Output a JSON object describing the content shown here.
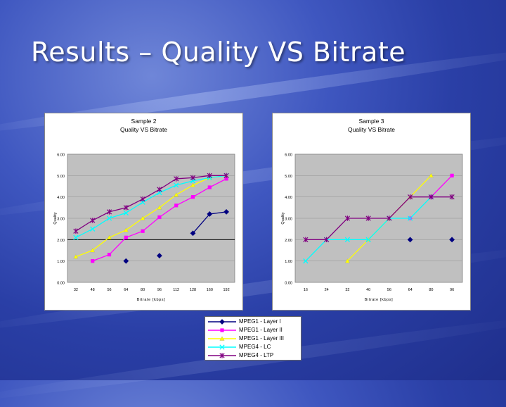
{
  "slide": {
    "title": "Results – Quality VS Bitrate"
  },
  "series_style": [
    {
      "name": "MPEG1 - Layer I",
      "color": "#000080",
      "marker": "diamond",
      "line": true
    },
    {
      "name": "MPEG1 - Layer II",
      "color": "#ff00ff",
      "marker": "square",
      "line": true
    },
    {
      "name": "MPEG1 - Layer III",
      "color": "#ffff00",
      "marker": "triangle",
      "line": true
    },
    {
      "name": "MPEG4 - LC",
      "color": "#00ffff",
      "marker": "x",
      "line": true
    },
    {
      "name": "MPEG4 - LTP",
      "color": "#800080",
      "marker": "star",
      "line": true
    }
  ],
  "chart_data": [
    {
      "type": "line",
      "title": [
        "Sample 2",
        "Quality VS Bitrate"
      ],
      "xlabel": "Bitrate [kbps]",
      "ylabel": "Quality",
      "categories": [
        "32",
        "48",
        "56",
        "64",
        "80",
        "96",
        "112",
        "128",
        "160",
        "192"
      ],
      "y_ticks": [
        "0.00",
        "1.00",
        "2.00",
        "3.00",
        "4.00",
        "5.00",
        "6.00"
      ],
      "ylim": [
        0,
        6
      ],
      "reference_line": 2.0,
      "series": [
        {
          "name": "MPEG1 - Layer I",
          "values": [
            null,
            null,
            null,
            1.0,
            null,
            1.25,
            null,
            2.3,
            3.2,
            3.3
          ],
          "segments": [
            [
              7,
              8,
              9
            ]
          ]
        },
        {
          "name": "MPEG1 - Layer II",
          "values": [
            null,
            1.0,
            1.3,
            2.1,
            2.4,
            3.05,
            3.6,
            4.0,
            4.45,
            4.85
          ]
        },
        {
          "name": "MPEG1 - Layer III",
          "values": [
            1.2,
            1.5,
            2.1,
            2.45,
            3.0,
            3.5,
            4.1,
            4.55,
            4.9,
            5.0
          ]
        },
        {
          "name": "MPEG4 - LC",
          "values": [
            2.1,
            2.5,
            3.0,
            3.25,
            3.75,
            4.2,
            4.55,
            4.75,
            4.9,
            5.0
          ]
        },
        {
          "name": "MPEG4 - LTP",
          "values": [
            2.4,
            2.9,
            3.3,
            3.5,
            3.9,
            4.35,
            4.85,
            4.9,
            5.0,
            5.0
          ]
        }
      ]
    },
    {
      "type": "line",
      "title": [
        "Sample 3",
        "Quality VS Bitrate"
      ],
      "xlabel": "Bitrate [kbps]",
      "ylabel": "Quality",
      "categories": [
        "16",
        "24",
        "32",
        "40",
        "56",
        "64",
        "80",
        "96"
      ],
      "y_ticks": [
        "0.00",
        "1.00",
        "2.00",
        "3.00",
        "4.00",
        "5.00",
        "6.00"
      ],
      "ylim": [
        0,
        6
      ],
      "series": [
        {
          "name": "MPEG1 - Layer I",
          "values": [
            null,
            null,
            null,
            null,
            null,
            2.0,
            null,
            2.0
          ],
          "segments": []
        },
        {
          "name": "MPEG1 - Layer II",
          "values": [
            null,
            null,
            null,
            null,
            null,
            3.0,
            4.0,
            5.0
          ],
          "segments": [
            [
              6,
              7
            ]
          ]
        },
        {
          "name": "MPEG1 - Layer III",
          "values": [
            null,
            null,
            1.0,
            2.0,
            3.0,
            4.0,
            5.0,
            null
          ]
        },
        {
          "name": "MPEG4 - LC",
          "values": [
            1.0,
            2.0,
            2.0,
            2.0,
            3.0,
            3.0,
            4.0,
            null
          ]
        },
        {
          "name": "MPEG4 - LTP",
          "values": [
            2.0,
            2.0,
            3.0,
            3.0,
            3.0,
            4.0,
            4.0,
            4.0
          ]
        }
      ]
    }
  ]
}
